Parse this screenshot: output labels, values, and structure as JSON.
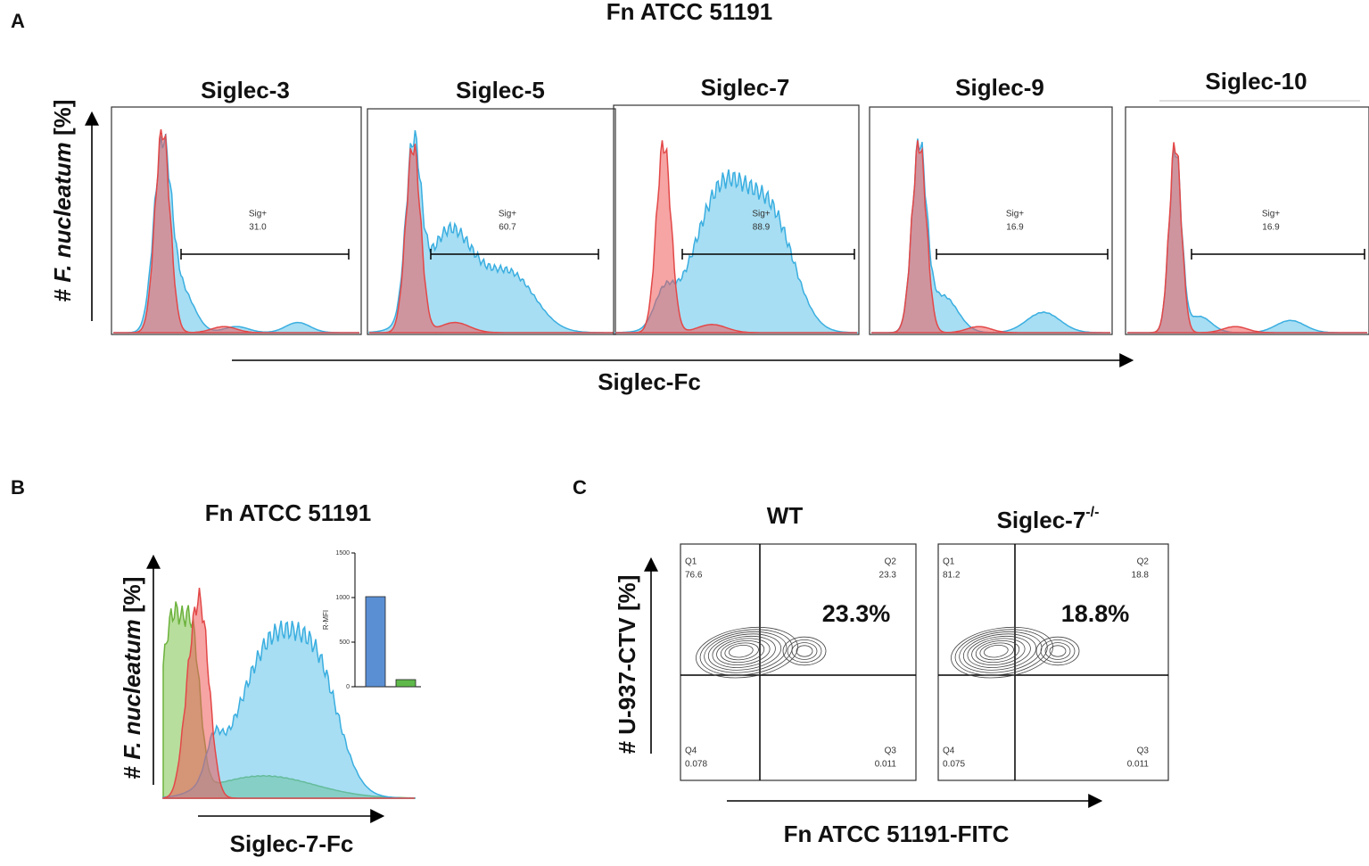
{
  "figure_title": "Fn ATCC 51191",
  "panel_a": {
    "label": "A",
    "y_label": {
      "prefix": "#",
      "species": "F. nucleatum",
      "suffix": "[%]"
    },
    "x_label": "Siglec-Fc",
    "plots": [
      {
        "title": "Siglec-3",
        "gate": "Sig+",
        "percent": "31.0"
      },
      {
        "title": "Siglec-5",
        "gate": "Sig+",
        "percent": "60.7"
      },
      {
        "title": "Siglec-7",
        "gate": "Sig+",
        "percent": "88.9"
      },
      {
        "title": "Siglec-9",
        "gate": "Sig+",
        "percent": "16.9"
      },
      {
        "title": "Siglec-10",
        "gate": "Sig+",
        "percent": "16.9"
      }
    ]
  },
  "panel_b": {
    "label": "B",
    "title": "Fn ATCC 51191",
    "y_label": {
      "prefix": "#",
      "species": "F. nucleatum",
      "suffix": "[%]"
    },
    "x_label": "Siglec-7-Fc",
    "inset": {
      "type": "bar",
      "y_label": "R-MFI",
      "values": [
        1010,
        80
      ],
      "colors": [
        "#5b8fd4",
        "#5fb94a"
      ],
      "ylim": [
        0,
        1500
      ],
      "yticks": [
        0,
        500,
        1000,
        1500
      ]
    }
  },
  "panel_c": {
    "label": "C",
    "y_label": "# U-937-CTV [%]",
    "x_label": "Fn ATCC 51191-FITC",
    "plots": [
      {
        "title": "WT",
        "big_label": "23.3%",
        "quadrants": {
          "Q1": "Q1",
          "Q1_value": "76.6",
          "Q2": "Q2",
          "Q2_value": "23.3",
          "Q3": "Q3",
          "Q3_value": "0.011",
          "Q4": "Q4",
          "Q4_value": "0.078"
        }
      },
      {
        "title": "Siglec-7",
        "superscript": "-/-",
        "big_label": "18.8%",
        "quadrants": {
          "Q1": "Q1",
          "Q1_value": "81.2",
          "Q2": "Q2",
          "Q2_value": "18.8",
          "Q3": "Q3",
          "Q3_value": "0.011",
          "Q4": "Q4",
          "Q4_value": "0.075"
        }
      }
    ]
  }
}
